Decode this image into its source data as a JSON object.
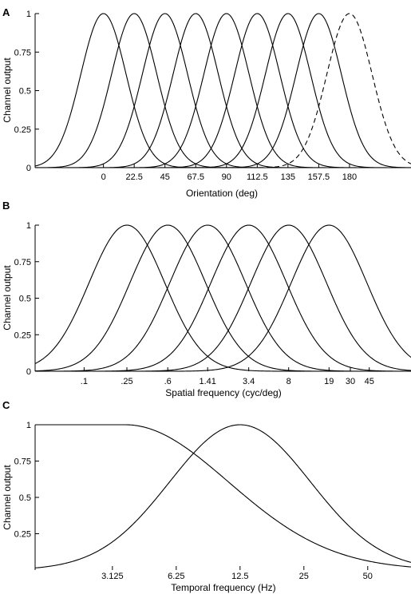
{
  "chart_data": [
    {
      "panel": "A",
      "type": "line",
      "xlabel": "Orientation (deg)",
      "ylabel": "Channel output",
      "xlim": [
        -50,
        225
      ],
      "ylim": [
        0,
        1
      ],
      "x_ticks": [
        0,
        22.5,
        45,
        67.5,
        90,
        112.5,
        135,
        157.5,
        180
      ],
      "x_tick_labels": [
        "0",
        "22.5",
        "45",
        "67.5",
        "90",
        "112.5",
        "135",
        "157.5",
        "180"
      ],
      "y_ticks": [
        0,
        0.25,
        0.5,
        0.75,
        1
      ],
      "y_tick_labels": [
        "0",
        "0.25",
        "0.5",
        "0.75",
        "1"
      ],
      "grid": false,
      "series": [
        {
          "center": 0,
          "half_height_width": 39,
          "style": "solid"
        },
        {
          "center": 22.5,
          "half_height_width": 39,
          "style": "solid"
        },
        {
          "center": 45,
          "half_height_width": 39,
          "style": "solid"
        },
        {
          "center": 67.5,
          "half_height_width": 39,
          "style": "solid"
        },
        {
          "center": 90,
          "half_height_width": 39,
          "style": "solid"
        },
        {
          "center": 112.5,
          "half_height_width": 39,
          "style": "solid"
        },
        {
          "center": 135,
          "half_height_width": 39,
          "style": "solid"
        },
        {
          "center": 157.5,
          "half_height_width": 39,
          "style": "solid"
        },
        {
          "center": 180,
          "half_height_width": 39,
          "style": "dashed"
        }
      ]
    },
    {
      "panel": "B",
      "type": "line",
      "xlabel": "Spatial frequency (cyc/deg)",
      "ylabel": "Channel output",
      "scale": "log",
      "xlim": [
        0.035,
        110
      ],
      "ylim": [
        0,
        1
      ],
      "x_ticks": [
        0.1,
        0.25,
        0.6,
        1.41,
        3.4,
        8,
        19,
        30,
        45
      ],
      "x_tick_labels": [
        ".1",
        ".25",
        ".6",
        "1.41",
        "3.4",
        "8",
        "19",
        "30",
        "45"
      ],
      "y_ticks": [
        0,
        0.25,
        0.5,
        0.75,
        1
      ],
      "y_tick_labels": [
        "0",
        "0.25",
        "0.5",
        "0.75",
        "1"
      ],
      "grid": false,
      "series": [
        {
          "center": 0.25,
          "half_height_width_octaves": 2.75,
          "style": "solid"
        },
        {
          "center": 0.6,
          "half_height_width_octaves": 2.75,
          "style": "solid"
        },
        {
          "center": 1.41,
          "half_height_width_octaves": 2.75,
          "style": "solid"
        },
        {
          "center": 3.4,
          "half_height_width_octaves": 2.75,
          "style": "solid"
        },
        {
          "center": 8,
          "half_height_width_octaves": 2.75,
          "style": "solid"
        },
        {
          "center": 19,
          "half_height_width_octaves": 2.75,
          "style": "solid"
        }
      ]
    },
    {
      "panel": "C",
      "type": "line",
      "xlabel": "Temporal frequency (Hz)",
      "ylabel": "Channel output",
      "scale": "log",
      "xlim": [
        1.35,
        80
      ],
      "ylim": [
        0,
        1
      ],
      "x_ticks": [
        3.125,
        6.25,
        12.5,
        25,
        50
      ],
      "x_tick_labels": [
        "3.125",
        "6.25",
        "12.5",
        "25",
        "50"
      ],
      "y_ticks": [
        0.25,
        0.5,
        0.75,
        1
      ],
      "y_tick_labels": [
        "0.25",
        "0.5",
        "0.75",
        "1"
      ],
      "grid": false,
      "series": [
        {
          "kind": "low-pass",
          "plateau_until": 3.6,
          "falloff_octaves": 3.8,
          "style": "solid"
        },
        {
          "kind": "band-pass",
          "center": 12.5,
          "half_height_width_octaves": 2.6,
          "style": "solid"
        }
      ]
    }
  ]
}
